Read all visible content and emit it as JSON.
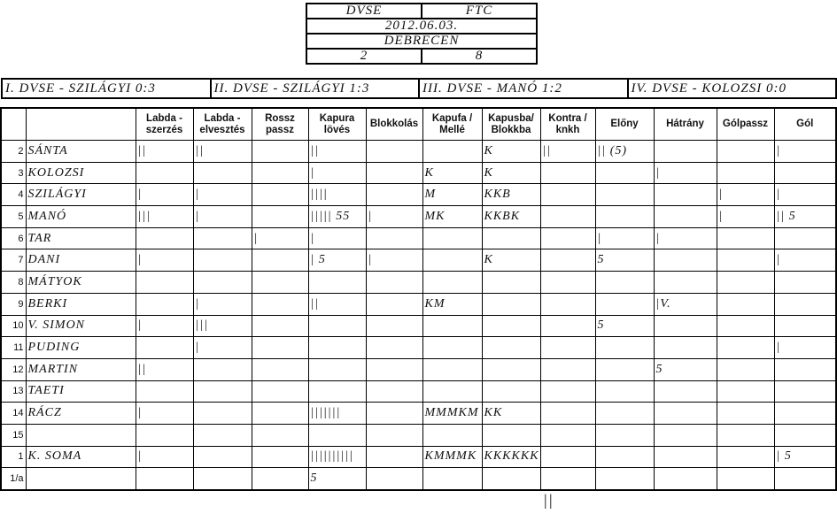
{
  "header": {
    "home": "DVSE",
    "away": "FTC",
    "date": "2012.06.03.",
    "place": "DEBRECEN",
    "home_score": "2",
    "away_score": "8"
  },
  "periods": [
    "I. DVSE - SZILÁGYI 0:3",
    "II. DVSE - SZILÁGYI 1:3",
    "III. DVSE - MANÓ 1:2",
    "IV. DVSE - KOLOZSI 0:0"
  ],
  "table": {
    "columns": [
      null,
      null,
      "Labda - szerzés",
      "Labda - elvesztés",
      "Rossz passz",
      "Kapura lövés",
      "Blokkolás",
      "Kapufa / Mellé",
      "Kapusba/ Blokkba",
      "Kontra / knkh",
      "Előny",
      "Hátrány",
      "Gólpassz",
      "Gól"
    ],
    "rows": [
      {
        "number": "2",
        "name": "SÁNTA",
        "cells": [
          "||",
          "||",
          null,
          "||",
          null,
          null,
          "K",
          "||",
          "|| (5)",
          null,
          null,
          "|"
        ]
      },
      {
        "number": "3",
        "name": "KOLOZSI",
        "cells": [
          null,
          null,
          null,
          "|",
          null,
          "K",
          "K",
          null,
          null,
          "|",
          null,
          null
        ]
      },
      {
        "number": "4",
        "name": "SZILÁGYI",
        "cells": [
          "|",
          "|",
          null,
          "||||",
          null,
          "M",
          "KKB",
          null,
          null,
          null,
          "|",
          "|"
        ]
      },
      {
        "number": "5",
        "name": "MANÓ",
        "cells": [
          "|||",
          "|",
          null,
          "||||| 55",
          "|",
          "MK",
          "KKBK",
          null,
          null,
          null,
          "|",
          "|| 5"
        ]
      },
      {
        "number": "6",
        "name": "TAR",
        "cells": [
          null,
          null,
          "|",
          "|",
          null,
          null,
          null,
          null,
          "|",
          "|",
          null,
          null
        ]
      },
      {
        "number": "7",
        "name": "DANI",
        "cells": [
          "|",
          null,
          null,
          "| 5",
          "|",
          null,
          "K",
          null,
          "5",
          null,
          null,
          "|"
        ]
      },
      {
        "number": "8",
        "name": "MÁTYOK",
        "cells": [
          null,
          null,
          null,
          null,
          null,
          null,
          null,
          null,
          null,
          null,
          null,
          null
        ]
      },
      {
        "number": "9",
        "name": "BERKI",
        "cells": [
          null,
          "|",
          null,
          "||",
          null,
          "KM",
          null,
          null,
          null,
          "|V.",
          null,
          null
        ]
      },
      {
        "number": "10",
        "name": "V. SIMON",
        "cells": [
          "|",
          "|||",
          null,
          null,
          null,
          null,
          null,
          null,
          "5",
          null,
          null,
          null
        ]
      },
      {
        "number": "11",
        "name": "PUDING",
        "cells": [
          null,
          "|",
          null,
          null,
          null,
          null,
          null,
          null,
          null,
          null,
          null,
          "|"
        ]
      },
      {
        "number": "12",
        "name": "MARTIN",
        "cells": [
          "||",
          null,
          null,
          null,
          null,
          null,
          null,
          null,
          null,
          "5",
          null,
          null
        ]
      },
      {
        "number": "13",
        "name": "TAETI",
        "cells": [
          null,
          null,
          null,
          null,
          null,
          null,
          null,
          null,
          null,
          null,
          null,
          null
        ]
      },
      {
        "number": "14",
        "name": "RÁCZ",
        "cells": [
          "|",
          null,
          null,
          "|||||||",
          null,
          "MMMKM",
          "KK",
          null,
          null,
          null,
          null,
          null
        ]
      },
      {
        "number": "15",
        "name": null,
        "cells": [
          null,
          null,
          null,
          null,
          null,
          null,
          null,
          null,
          null,
          null,
          null,
          null
        ]
      },
      {
        "number": "1",
        "name": "K. SOMA",
        "cells": [
          "|",
          null,
          null,
          "||||||||||",
          null,
          "KMMMK",
          "KKKKKK",
          null,
          null,
          null,
          null,
          "| 5"
        ]
      },
      {
        "number": "1/a",
        "name": null,
        "cells": [
          null,
          null,
          null,
          "5",
          null,
          null,
          null,
          null,
          null,
          null,
          null,
          null
        ]
      }
    ]
  },
  "footer_mark": "||"
}
